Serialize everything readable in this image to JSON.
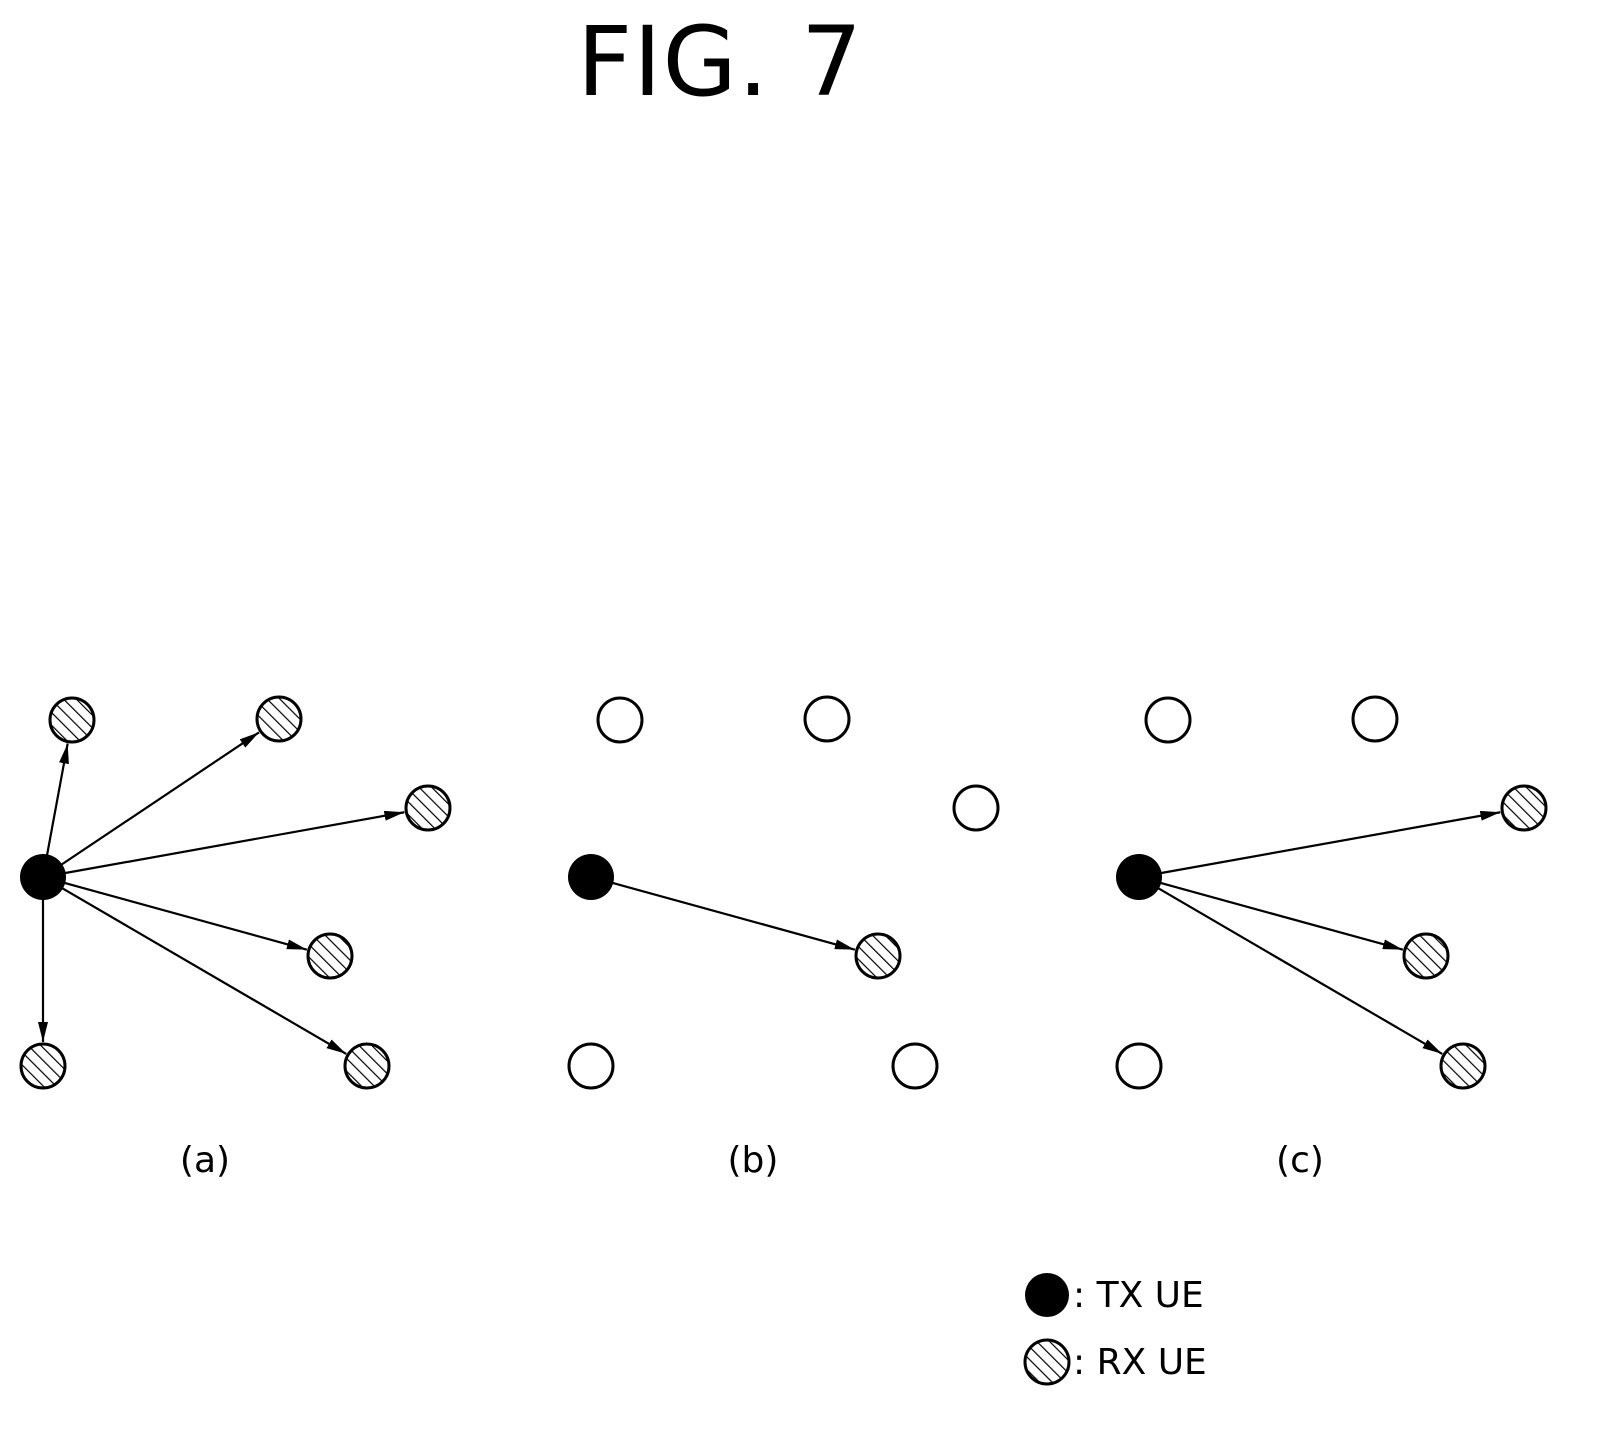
{
  "figure": {
    "title": "FIG. 7"
  },
  "panels": [
    {
      "label": "(a)",
      "tx": "tx",
      "nodes": [
        {
          "id": "n1",
          "state": "rx"
        },
        {
          "id": "n2",
          "state": "rx"
        },
        {
          "id": "n3",
          "state": "rx"
        },
        {
          "id": "n4",
          "state": "rx"
        },
        {
          "id": "n5",
          "state": "rx"
        },
        {
          "id": "n6",
          "state": "rx"
        }
      ],
      "arrows": [
        "n1",
        "n2",
        "n3",
        "n4",
        "n5",
        "n6"
      ]
    },
    {
      "label": "(b)",
      "tx": "tx",
      "nodes": [
        {
          "id": "n1",
          "state": "idle"
        },
        {
          "id": "n2",
          "state": "idle"
        },
        {
          "id": "n3",
          "state": "idle"
        },
        {
          "id": "n4",
          "state": "rx"
        },
        {
          "id": "n5",
          "state": "idle"
        },
        {
          "id": "n6",
          "state": "idle"
        }
      ],
      "arrows": [
        "n4"
      ]
    },
    {
      "label": "(c)",
      "tx": "tx",
      "nodes": [
        {
          "id": "n1",
          "state": "idle"
        },
        {
          "id": "n2",
          "state": "idle"
        },
        {
          "id": "n3",
          "state": "rx"
        },
        {
          "id": "n4",
          "state": "rx"
        },
        {
          "id": "n5",
          "state": "rx"
        },
        {
          "id": "n6",
          "state": "idle"
        }
      ],
      "arrows": [
        "n3",
        "n4",
        "n5"
      ]
    }
  ],
  "legend": [
    {
      "symbol": "tx",
      "text": ": TX UE"
    },
    {
      "symbol": "rx",
      "text": ": RX UE"
    }
  ]
}
